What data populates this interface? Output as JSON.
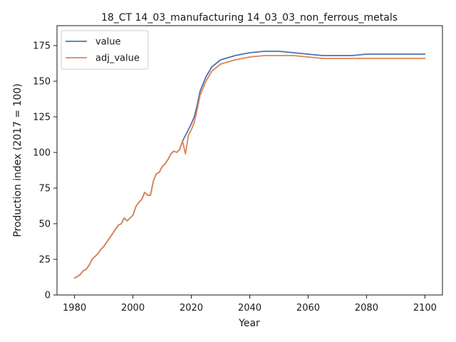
{
  "chart_data": {
    "type": "line",
    "title": "18_CT 14_03_manufacturing 14_03_03_non_ferrous_metals",
    "xlabel": "Year",
    "ylabel": "Production index (2017 = 100)",
    "xlim": [
      1974,
      2106
    ],
    "ylim": [
      0,
      189
    ],
    "xticks": [
      1980,
      2000,
      2020,
      2040,
      2060,
      2080,
      2100
    ],
    "yticks": [
      0,
      25,
      50,
      75,
      100,
      125,
      150,
      175
    ],
    "grid": false,
    "legend_position": "upper-left",
    "series": [
      {
        "name": "value",
        "color": "#4c72b0",
        "x": [
          1980,
          1981,
          1982,
          1983,
          1984,
          1985,
          1986,
          1987,
          1988,
          1989,
          1990,
          1991,
          1992,
          1993,
          1994,
          1995,
          1996,
          1997,
          1998,
          1999,
          2000,
          2001,
          2002,
          2003,
          2004,
          2005,
          2006,
          2007,
          2008,
          2009,
          2010,
          2011,
          2012,
          2013,
          2014,
          2015,
          2016,
          2017,
          2018,
          2019,
          2020,
          2021,
          2022,
          2023,
          2025,
          2027,
          2030,
          2035,
          2040,
          2045,
          2050,
          2055,
          2060,
          2065,
          2070,
          2075,
          2080,
          2085,
          2090,
          2095,
          2100
        ],
        "y": [
          12,
          13,
          14.5,
          17,
          18,
          21,
          25,
          27,
          29,
          32,
          34,
          37,
          40,
          43,
          46,
          49,
          50,
          54,
          52,
          54,
          56,
          62,
          65,
          67,
          72,
          70,
          70,
          80,
          85,
          86,
          90,
          92,
          95,
          99,
          101,
          100,
          102,
          108,
          112,
          116,
          120,
          125,
          133,
          143,
          153,
          160,
          165,
          168,
          170,
          171,
          171,
          170,
          169,
          168,
          168,
          168,
          169,
          169,
          169,
          169,
          169
        ]
      },
      {
        "name": "adj_value",
        "color": "#dd8452",
        "x": [
          1980,
          1981,
          1982,
          1983,
          1984,
          1985,
          1986,
          1987,
          1988,
          1989,
          1990,
          1991,
          1992,
          1993,
          1994,
          1995,
          1996,
          1997,
          1998,
          1999,
          2000,
          2001,
          2002,
          2003,
          2004,
          2005,
          2006,
          2007,
          2008,
          2009,
          2010,
          2011,
          2012,
          2013,
          2014,
          2015,
          2016,
          2017,
          2018,
          2019,
          2020,
          2021,
          2022,
          2023,
          2025,
          2027,
          2030,
          2035,
          2040,
          2045,
          2050,
          2055,
          2060,
          2065,
          2070,
          2075,
          2080,
          2085,
          2090,
          2095,
          2100
        ],
        "y": [
          12,
          13,
          14.5,
          17,
          18,
          21,
          25,
          27,
          29,
          32,
          34,
          37,
          40,
          43,
          46,
          49,
          50,
          54,
          52,
          54,
          56,
          62,
          65,
          67,
          72,
          70,
          70,
          80,
          85,
          86,
          90,
          92,
          95,
          99,
          101,
          100,
          102,
          108,
          99,
          112,
          116,
          121,
          130,
          140,
          150,
          157,
          162,
          165,
          167,
          168,
          168,
          168,
          167,
          166,
          166,
          166,
          166,
          166,
          166,
          166,
          166
        ]
      }
    ]
  }
}
